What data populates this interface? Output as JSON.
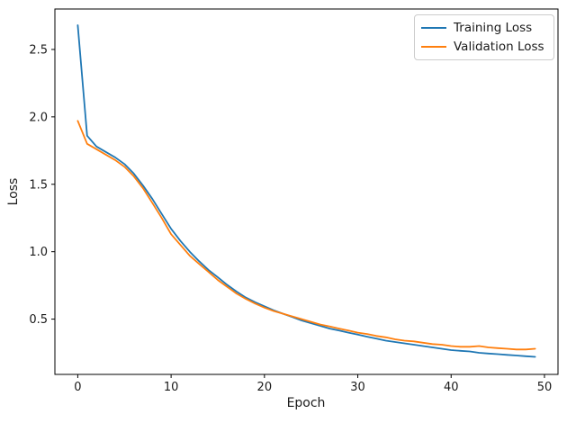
{
  "figure": {
    "background": "#ffffff",
    "text_color": "#1a1a1a",
    "spine_color": "#000000"
  },
  "chart_data": {
    "type": "line",
    "title": "",
    "xlabel": "Epoch",
    "ylabel": "Loss",
    "grid": false,
    "legend_position": "upper right",
    "x_range": [
      -2.45,
      51.45
    ],
    "y_range": [
      0.09,
      2.8
    ],
    "x_ticks": [
      0,
      10,
      20,
      30,
      40,
      50
    ],
    "x_tick_labels": [
      "0",
      "10",
      "20",
      "30",
      "40",
      "50"
    ],
    "y_ticks": [
      0.5,
      1.0,
      1.5,
      2.0,
      2.5
    ],
    "y_tick_labels": [
      "0.5",
      "1.0",
      "1.5",
      "2.0",
      "2.5"
    ],
    "x": [
      0,
      1,
      2,
      3,
      4,
      5,
      6,
      7,
      8,
      9,
      10,
      11,
      12,
      13,
      14,
      15,
      16,
      17,
      18,
      19,
      20,
      21,
      22,
      23,
      24,
      25,
      26,
      27,
      28,
      29,
      30,
      31,
      32,
      33,
      34,
      35,
      36,
      37,
      38,
      39,
      40,
      41,
      42,
      43,
      44,
      45,
      46,
      47,
      48,
      49
    ],
    "series": [
      {
        "name": "Training Loss",
        "color": "#1f77b4",
        "values": [
          2.68,
          1.86,
          1.78,
          1.74,
          1.7,
          1.65,
          1.58,
          1.49,
          1.39,
          1.28,
          1.17,
          1.08,
          1.0,
          0.93,
          0.865,
          0.81,
          0.755,
          0.705,
          0.66,
          0.625,
          0.595,
          0.565,
          0.54,
          0.515,
          0.49,
          0.47,
          0.45,
          0.43,
          0.415,
          0.4,
          0.385,
          0.37,
          0.355,
          0.34,
          0.33,
          0.32,
          0.31,
          0.3,
          0.29,
          0.28,
          0.27,
          0.265,
          0.26,
          0.25,
          0.245,
          0.24,
          0.235,
          0.23,
          0.225,
          0.22
        ]
      },
      {
        "name": "Validation Loss",
        "color": "#ff7f0e",
        "values": [
          1.97,
          1.8,
          1.76,
          1.72,
          1.68,
          1.63,
          1.56,
          1.47,
          1.36,
          1.25,
          1.13,
          1.05,
          0.97,
          0.91,
          0.85,
          0.79,
          0.74,
          0.69,
          0.65,
          0.615,
          0.585,
          0.56,
          0.54,
          0.52,
          0.5,
          0.48,
          0.46,
          0.445,
          0.43,
          0.415,
          0.4,
          0.39,
          0.375,
          0.365,
          0.35,
          0.34,
          0.335,
          0.325,
          0.315,
          0.31,
          0.3,
          0.295,
          0.295,
          0.3,
          0.29,
          0.285,
          0.28,
          0.275,
          0.275,
          0.28
        ]
      }
    ]
  }
}
